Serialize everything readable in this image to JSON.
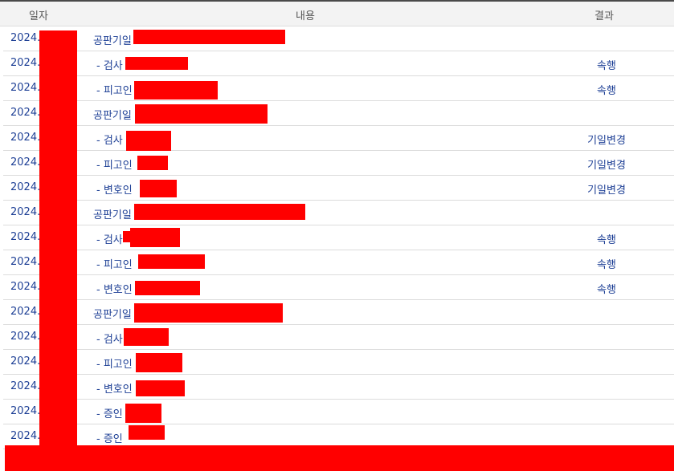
{
  "table": {
    "headers": {
      "date": "일자",
      "content": "내용",
      "result": "결과"
    },
    "rows": [
      {
        "date": "2024.",
        "content": "공판기일",
        "result": ""
      },
      {
        "date": "2024.",
        "content": "- 검사",
        "result": "속행"
      },
      {
        "date": "2024.",
        "content": "- 피고인",
        "result": "속행"
      },
      {
        "date": "2024.",
        "content": "공판기일",
        "result": ""
      },
      {
        "date": "2024.",
        "content": "- 검사",
        "result": "기일변경"
      },
      {
        "date": "2024.",
        "content": "- 피고인",
        "result": "기일변경"
      },
      {
        "date": "2024.",
        "content": "- 변호인",
        "result": "기일변경"
      },
      {
        "date": "2024.",
        "content": "공판기일",
        "result": ""
      },
      {
        "date": "2024.",
        "content": "- 검사",
        "result": "속행"
      },
      {
        "date": "2024.",
        "content": "- 피고인",
        "result": "속행"
      },
      {
        "date": "2024.",
        "content": "- 변호인",
        "result": "속행"
      },
      {
        "date": "2024.",
        "content": "공판기일",
        "result": ""
      },
      {
        "date": "2024.",
        "content": "- 검사",
        "result": ""
      },
      {
        "date": "2024.",
        "content": "- 피고인",
        "result": ""
      },
      {
        "date": "2024.",
        "content": "- 변호인",
        "result": ""
      },
      {
        "date": "2024.",
        "content": "- 증인",
        "result": ""
      },
      {
        "date": "2024.",
        "content": "- 증인",
        "result": ""
      }
    ]
  },
  "colors": {
    "text": "#1d3f95",
    "header_bg": "#f3f3f3",
    "redaction": "#ff0000"
  }
}
